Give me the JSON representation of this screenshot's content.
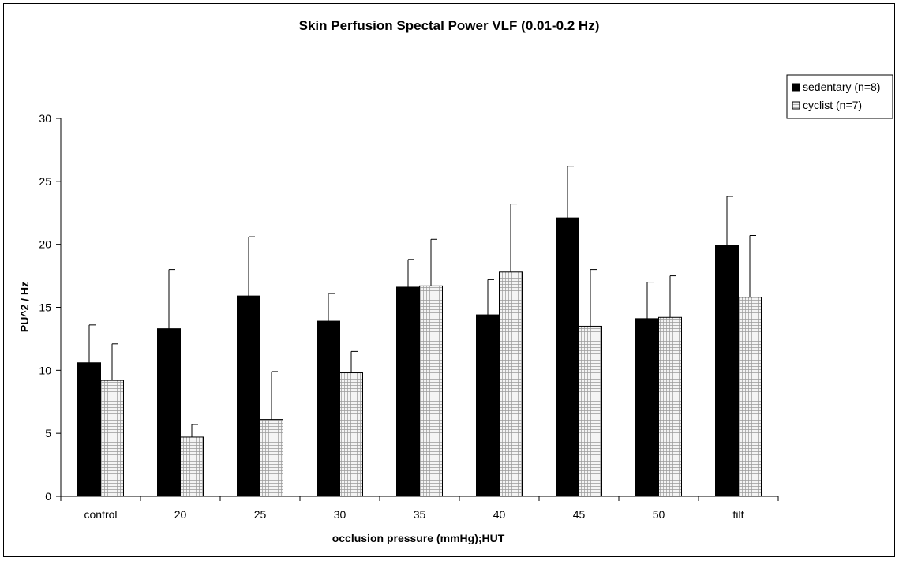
{
  "chart_data": {
    "type": "bar",
    "title": "Skin Perfusion Spectal Power VLF (0.01-0.2 Hz)",
    "xlabel": "occlusion pressure (mmHg);HUT",
    "ylabel": "PU^2 / Hz",
    "ylim": [
      0,
      30
    ],
    "yticks": [
      "0",
      "5",
      "10",
      "15",
      "20",
      "25",
      "30"
    ],
    "categories": [
      "control",
      "20",
      "25",
      "30",
      "35",
      "40",
      "45",
      "50",
      "tilt"
    ],
    "grid": false,
    "legend_position": "top-right",
    "series": [
      {
        "name": "sedentary (n=8)",
        "fill": "solid-black",
        "values": [
          10.6,
          13.3,
          15.9,
          13.9,
          16.6,
          14.4,
          22.1,
          14.1,
          19.9
        ],
        "error_upper": [
          3.0,
          4.7,
          4.7,
          2.2,
          2.2,
          2.8,
          4.1,
          2.9,
          3.9
        ]
      },
      {
        "name": "cyclist (n=7)",
        "fill": "light-grid",
        "values": [
          9.2,
          4.7,
          6.1,
          9.8,
          16.7,
          17.8,
          13.5,
          14.2,
          15.8
        ],
        "error_upper": [
          2.9,
          1.0,
          3.8,
          1.7,
          3.7,
          5.4,
          4.5,
          3.3,
          4.9
        ]
      }
    ],
    "colors": {
      "sedentary": "#000000",
      "cyclist_fill": "#f4f4f4",
      "cyclist_grid": "#9a9a9a"
    }
  }
}
